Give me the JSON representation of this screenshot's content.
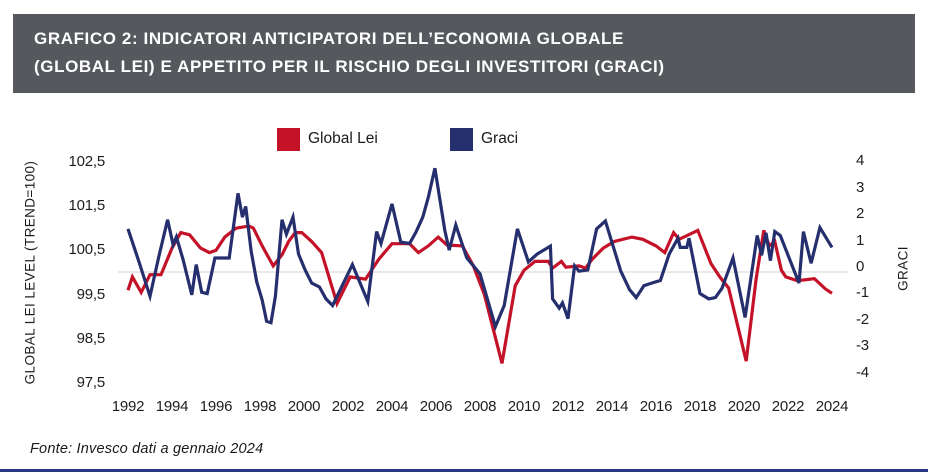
{
  "header": {
    "title": "GRAFICO 2: INDICATORI ANTICIPATORI DELL’ECONOMIA GLOBALE\n(GLOBAL LEI) E APPETITO PER IL RISCHIO DEGLI INVESTITORI (GRACI)"
  },
  "legend": {
    "items": [
      {
        "label": "Global Lei",
        "color": "#c41228"
      },
      {
        "label": "Graci",
        "color": "#262f6d"
      }
    ]
  },
  "footer": {
    "source": "Fonte: Invesco dati a gennaio 2024"
  },
  "colors": {
    "header_bg": "#55595e",
    "global_lei_line": "#c41228",
    "graci_line": "#262f6d",
    "zero_line": "#dcdcdc",
    "bottom_rule": "#283583"
  },
  "chart_data": {
    "type": "line",
    "title": "GRAFICO 2: INDICATORI ANTICIPATORI DELL’ECONOMIA GLOBALE (GLOBAL LEI) E APPETITO PER IL RISCHIO DEGLI INVESTITORI (GRACI)",
    "legend_position": "top",
    "grid": "zero-line-only",
    "x_axis": {
      "ticks": [
        "1992",
        "1994",
        "1996",
        "1998",
        "2000",
        "2002",
        "2004",
        "2006",
        "2008",
        "2010",
        "2012",
        "2014",
        "2016",
        "2018",
        "2020",
        "2022",
        "2024"
      ],
      "tick_values": [
        1992,
        1994,
        1996,
        1998,
        2000,
        2002,
        2004,
        2006,
        2008,
        2010,
        2012,
        2014,
        2016,
        2018,
        2020,
        2022,
        2024
      ],
      "range": [
        1992,
        2024
      ]
    },
    "y_left": {
      "label": "GLOBAL LEI LEVEL (TREND=100)",
      "ticks": [
        {
          "label": "102,5",
          "value": 102.5
        },
        {
          "label": "101,5",
          "value": 101.5
        },
        {
          "label": "100,5",
          "value": 100.5
        },
        {
          "label": "99,5",
          "value": 99.5
        },
        {
          "label": "98,5",
          "value": 98.5
        },
        {
          "label": "97,5",
          "value": 97.5
        }
      ],
      "range": [
        97.5,
        102.5
      ]
    },
    "y_right": {
      "label": "GRACI",
      "ticks": [
        {
          "label": "4",
          "value": 4
        },
        {
          "label": "3",
          "value": 3
        },
        {
          "label": "2",
          "value": 2
        },
        {
          "label": "1",
          "value": 1
        },
        {
          "label": "0",
          "value": 0
        },
        {
          "label": "-1",
          "value": -1
        },
        {
          "label": "-2",
          "value": -2
        },
        {
          "label": "-3",
          "value": -3
        },
        {
          "label": "-4",
          "value": -4
        }
      ],
      "range": [
        -4,
        4
      ]
    },
    "series": [
      {
        "name": "Global Lei",
        "axis": "left",
        "color": "#c41228",
        "points": [
          [
            1992.0,
            99.6
          ],
          [
            1992.2,
            99.9
          ],
          [
            1992.6,
            99.55
          ],
          [
            1993.0,
            99.95
          ],
          [
            1993.5,
            99.95
          ],
          [
            1994.0,
            100.55
          ],
          [
            1994.4,
            100.9
          ],
          [
            1994.8,
            100.85
          ],
          [
            1995.3,
            100.55
          ],
          [
            1995.7,
            100.45
          ],
          [
            1996.0,
            100.5
          ],
          [
            1996.4,
            100.8
          ],
          [
            1996.9,
            101.0
          ],
          [
            1997.5,
            101.05
          ],
          [
            1997.7,
            101.0
          ],
          [
            1998.1,
            100.6
          ],
          [
            1998.6,
            100.15
          ],
          [
            1999.0,
            100.4
          ],
          [
            1999.3,
            100.7
          ],
          [
            1999.6,
            100.9
          ],
          [
            1999.9,
            100.9
          ],
          [
            2000.35,
            100.7
          ],
          [
            2000.8,
            100.45
          ],
          [
            2001.5,
            99.3
          ],
          [
            2002.1,
            99.9
          ],
          [
            2002.8,
            99.85
          ],
          [
            2003.4,
            100.3
          ],
          [
            2004.0,
            100.65
          ],
          [
            2004.8,
            100.65
          ],
          [
            2005.2,
            100.45
          ],
          [
            2005.65,
            100.6
          ],
          [
            2006.1,
            100.8
          ],
          [
            2006.5,
            100.62
          ],
          [
            2007.2,
            100.6
          ],
          [
            2007.7,
            100.15
          ],
          [
            2008.2,
            99.5
          ],
          [
            2009.0,
            97.95
          ],
          [
            2009.6,
            99.7
          ],
          [
            2010.0,
            100.05
          ],
          [
            2010.5,
            100.25
          ],
          [
            2011.1,
            100.25
          ],
          [
            2011.3,
            100.1
          ],
          [
            2011.7,
            100.25
          ],
          [
            2011.9,
            100.12
          ],
          [
            2012.5,
            100.15
          ],
          [
            2012.8,
            100.1
          ],
          [
            2013.1,
            100.3
          ],
          [
            2013.6,
            100.55
          ],
          [
            2014.1,
            100.7
          ],
          [
            2014.9,
            100.8
          ],
          [
            2015.4,
            100.75
          ],
          [
            2016.0,
            100.6
          ],
          [
            2016.4,
            100.45
          ],
          [
            2016.8,
            100.9
          ],
          [
            2017.05,
            100.75
          ],
          [
            2017.9,
            100.95
          ],
          [
            2018.5,
            100.2
          ],
          [
            2018.9,
            99.9
          ],
          [
            2019.3,
            99.65
          ],
          [
            2020.1,
            98.0
          ],
          [
            2020.55,
            99.85
          ],
          [
            2020.9,
            100.95
          ],
          [
            2021.15,
            100.6
          ],
          [
            2021.4,
            100.7
          ],
          [
            2021.7,
            100.05
          ],
          [
            2021.9,
            99.9
          ],
          [
            2022.4,
            99.82
          ],
          [
            2022.7,
            99.83
          ],
          [
            2023.2,
            99.86
          ],
          [
            2023.7,
            99.63
          ],
          [
            2024.0,
            99.53
          ]
        ]
      },
      {
        "name": "Graci",
        "axis": "right",
        "color": "#262f6d",
        "points": [
          [
            1992.0,
            1.65
          ],
          [
            1992.5,
            0.4
          ],
          [
            1993.0,
            -0.9
          ],
          [
            1993.4,
            0.6
          ],
          [
            1993.8,
            2.0
          ],
          [
            1994.05,
            1.05
          ],
          [
            1994.2,
            1.35
          ],
          [
            1994.5,
            0.5
          ],
          [
            1994.9,
            -0.85
          ],
          [
            1995.1,
            0.3
          ],
          [
            1995.35,
            -0.75
          ],
          [
            1995.6,
            -0.8
          ],
          [
            1995.95,
            0.55
          ],
          [
            1996.6,
            0.55
          ],
          [
            1997.0,
            3.0
          ],
          [
            1997.2,
            2.1
          ],
          [
            1997.35,
            2.5
          ],
          [
            1997.6,
            0.8
          ],
          [
            1997.85,
            -0.35
          ],
          [
            1998.1,
            -1.05
          ],
          [
            1998.3,
            -1.85
          ],
          [
            1998.5,
            -1.9
          ],
          [
            1998.7,
            -0.9
          ],
          [
            1999.0,
            2.0
          ],
          [
            1999.2,
            1.45
          ],
          [
            1999.5,
            2.1
          ],
          [
            1999.75,
            0.7
          ],
          [
            2000.05,
            0.1
          ],
          [
            2000.35,
            -0.4
          ],
          [
            2000.7,
            -0.55
          ],
          [
            2001.0,
            -1.0
          ],
          [
            2001.3,
            -1.25
          ],
          [
            2002.2,
            0.3
          ],
          [
            2002.5,
            -0.3
          ],
          [
            2002.9,
            -1.1
          ],
          [
            2003.3,
            1.55
          ],
          [
            2003.5,
            1.1
          ],
          [
            2004.0,
            2.6
          ],
          [
            2004.4,
            1.15
          ],
          [
            2004.8,
            1.1
          ],
          [
            2005.1,
            1.55
          ],
          [
            2005.4,
            2.1
          ],
          [
            2005.65,
            2.85
          ],
          [
            2005.95,
            3.95
          ],
          [
            2006.4,
            1.6
          ],
          [
            2006.6,
            0.85
          ],
          [
            2006.9,
            1.8
          ],
          [
            2007.4,
            0.55
          ],
          [
            2008.0,
            -0.05
          ],
          [
            2008.7,
            -2.05
          ],
          [
            2009.1,
            -1.25
          ],
          [
            2009.7,
            1.65
          ],
          [
            2010.2,
            0.4
          ],
          [
            2010.6,
            0.7
          ],
          [
            2011.2,
            1.0
          ],
          [
            2011.3,
            -1.0
          ],
          [
            2011.6,
            -1.35
          ],
          [
            2011.75,
            -1.15
          ],
          [
            2012.0,
            -1.75
          ],
          [
            2012.3,
            0.25
          ],
          [
            2012.5,
            0.05
          ],
          [
            2012.9,
            0.1
          ],
          [
            2013.3,
            1.65
          ],
          [
            2013.7,
            1.95
          ],
          [
            2014.05,
            1.0
          ],
          [
            2014.4,
            0.05
          ],
          [
            2014.8,
            -0.65
          ],
          [
            2015.1,
            -0.95
          ],
          [
            2015.45,
            -0.5
          ],
          [
            2015.8,
            -0.4
          ],
          [
            2016.2,
            -0.3
          ],
          [
            2016.6,
            0.7
          ],
          [
            2017.0,
            1.3
          ],
          [
            2017.1,
            0.95
          ],
          [
            2017.4,
            0.95
          ],
          [
            2017.5,
            1.3
          ],
          [
            2018.0,
            -0.8
          ],
          [
            2018.4,
            -1.0
          ],
          [
            2018.7,
            -0.95
          ],
          [
            2019.0,
            -0.6
          ],
          [
            2019.5,
            0.55
          ],
          [
            2020.05,
            -1.7
          ],
          [
            2020.6,
            1.4
          ],
          [
            2020.8,
            0.65
          ],
          [
            2021.0,
            1.5
          ],
          [
            2021.2,
            0.45
          ],
          [
            2021.4,
            1.55
          ],
          [
            2021.65,
            1.4
          ],
          [
            2022.5,
            -0.4
          ],
          [
            2022.7,
            1.55
          ],
          [
            2023.05,
            0.35
          ],
          [
            2023.45,
            1.7
          ],
          [
            2024.0,
            0.95
          ]
        ]
      }
    ]
  }
}
